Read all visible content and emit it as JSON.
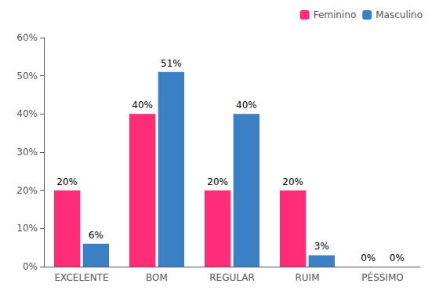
{
  "chart_data": {
    "type": "bar",
    "categories": [
      "EXCELENTE",
      "BOM",
      "REGULAR",
      "RUIM",
      "PÉSSIMO"
    ],
    "series": [
      {
        "name": "Feminino",
        "color": "#FF2D78",
        "values": [
          20,
          40,
          20,
          20,
          0
        ],
        "value_labels": [
          "20%",
          "40%",
          "20%",
          "20%",
          "0%"
        ]
      },
      {
        "name": "Masculino",
        "color": "#3B7FC4",
        "values": [
          6,
          51,
          40,
          3,
          0
        ],
        "value_labels": [
          "6%",
          "51%",
          "40%",
          "3%",
          "0%"
        ]
      }
    ],
    "ylim": [
      0,
      60
    ],
    "yticks": [
      {
        "value": 0,
        "label": "0%"
      },
      {
        "value": 10,
        "label": "10%"
      },
      {
        "value": 20,
        "label": "20%"
      },
      {
        "value": 30,
        "label": "30%"
      },
      {
        "value": 40,
        "label": "40%"
      },
      {
        "value": 50,
        "label": "50%"
      },
      {
        "value": 60,
        "label": "60%"
      }
    ],
    "data_labels": true,
    "grid": false,
    "legend": "upper right"
  }
}
